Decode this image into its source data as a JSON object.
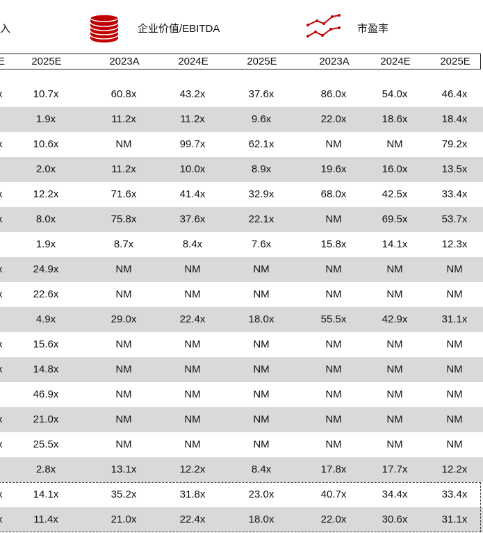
{
  "header": {
    "group1_fragment": "入",
    "group2_label": "企业价值/EBITDA",
    "group3_label": "市盈率",
    "group2_icon": "coin-stack-icon",
    "group3_icon": "trend-lines-icon",
    "accent_color": "#c00000"
  },
  "year_row": {
    "edge_fragment": "E",
    "years": [
      "2025E",
      "2023A",
      "2024E",
      "2025E",
      "2023A",
      "2024E",
      "2025E"
    ]
  },
  "rows": [
    {
      "edge": "x",
      "values": [
        "10.7x",
        "60.8x",
        "43.2x",
        "37.6x",
        "86.0x",
        "54.0x",
        "46.4x"
      ]
    },
    {
      "edge": "",
      "values": [
        "1.9x",
        "11.2x",
        "11.2x",
        "9.6x",
        "22.0x",
        "18.6x",
        "18.4x"
      ]
    },
    {
      "edge": "x",
      "values": [
        "10.6x",
        "NM",
        "99.7x",
        "62.1x",
        "NM",
        "NM",
        "79.2x"
      ]
    },
    {
      "edge": "",
      "values": [
        "2.0x",
        "11.2x",
        "10.0x",
        "8.9x",
        "19.6x",
        "16.0x",
        "13.5x"
      ]
    },
    {
      "edge": "x",
      "values": [
        "12.2x",
        "71.6x",
        "41.4x",
        "32.9x",
        "68.0x",
        "42.5x",
        "33.4x"
      ]
    },
    {
      "edge": "x",
      "values": [
        "8.0x",
        "75.8x",
        "37.6x",
        "22.1x",
        "NM",
        "69.5x",
        "53.7x"
      ]
    },
    {
      "edge": "",
      "values": [
        "1.9x",
        "8.7x",
        "8.4x",
        "7.6x",
        "15.8x",
        "14.1x",
        "12.3x"
      ]
    },
    {
      "edge": "x",
      "values": [
        "24.9x",
        "NM",
        "NM",
        "NM",
        "NM",
        "NM",
        "NM"
      ]
    },
    {
      "edge": "x",
      "values": [
        "22.6x",
        "NM",
        "NM",
        "NM",
        "NM",
        "NM",
        "NM"
      ]
    },
    {
      "edge": "",
      "values": [
        "4.9x",
        "29.0x",
        "22.4x",
        "18.0x",
        "55.5x",
        "42.9x",
        "31.1x"
      ]
    },
    {
      "edge": "x",
      "values": [
        "15.6x",
        "NM",
        "NM",
        "NM",
        "NM",
        "NM",
        "NM"
      ]
    },
    {
      "edge": "x",
      "values": [
        "14.8x",
        "NM",
        "NM",
        "NM",
        "NM",
        "NM",
        "NM"
      ]
    },
    {
      "edge": "",
      "values": [
        "46.9x",
        "NM",
        "NM",
        "NM",
        "NM",
        "NM",
        "NM"
      ]
    },
    {
      "edge": "x",
      "values": [
        "21.0x",
        "NM",
        "NM",
        "NM",
        "NM",
        "NM",
        "NM"
      ]
    },
    {
      "edge": "x",
      "values": [
        "25.5x",
        "NM",
        "NM",
        "NM",
        "NM",
        "NM",
        "NM"
      ]
    },
    {
      "edge": "",
      "values": [
        "2.8x",
        "13.1x",
        "12.2x",
        "8.4x",
        "17.8x",
        "17.7x",
        "12.2x"
      ]
    },
    {
      "edge": "x",
      "values": [
        "14.1x",
        "35.2x",
        "31.8x",
        "23.0x",
        "40.7x",
        "34.4x",
        "33.4x"
      ]
    },
    {
      "edge": "x",
      "values": [
        "11.4x",
        "21.0x",
        "22.4x",
        "18.0x",
        "22.0x",
        "30.6x",
        "31.1x"
      ]
    }
  ]
}
